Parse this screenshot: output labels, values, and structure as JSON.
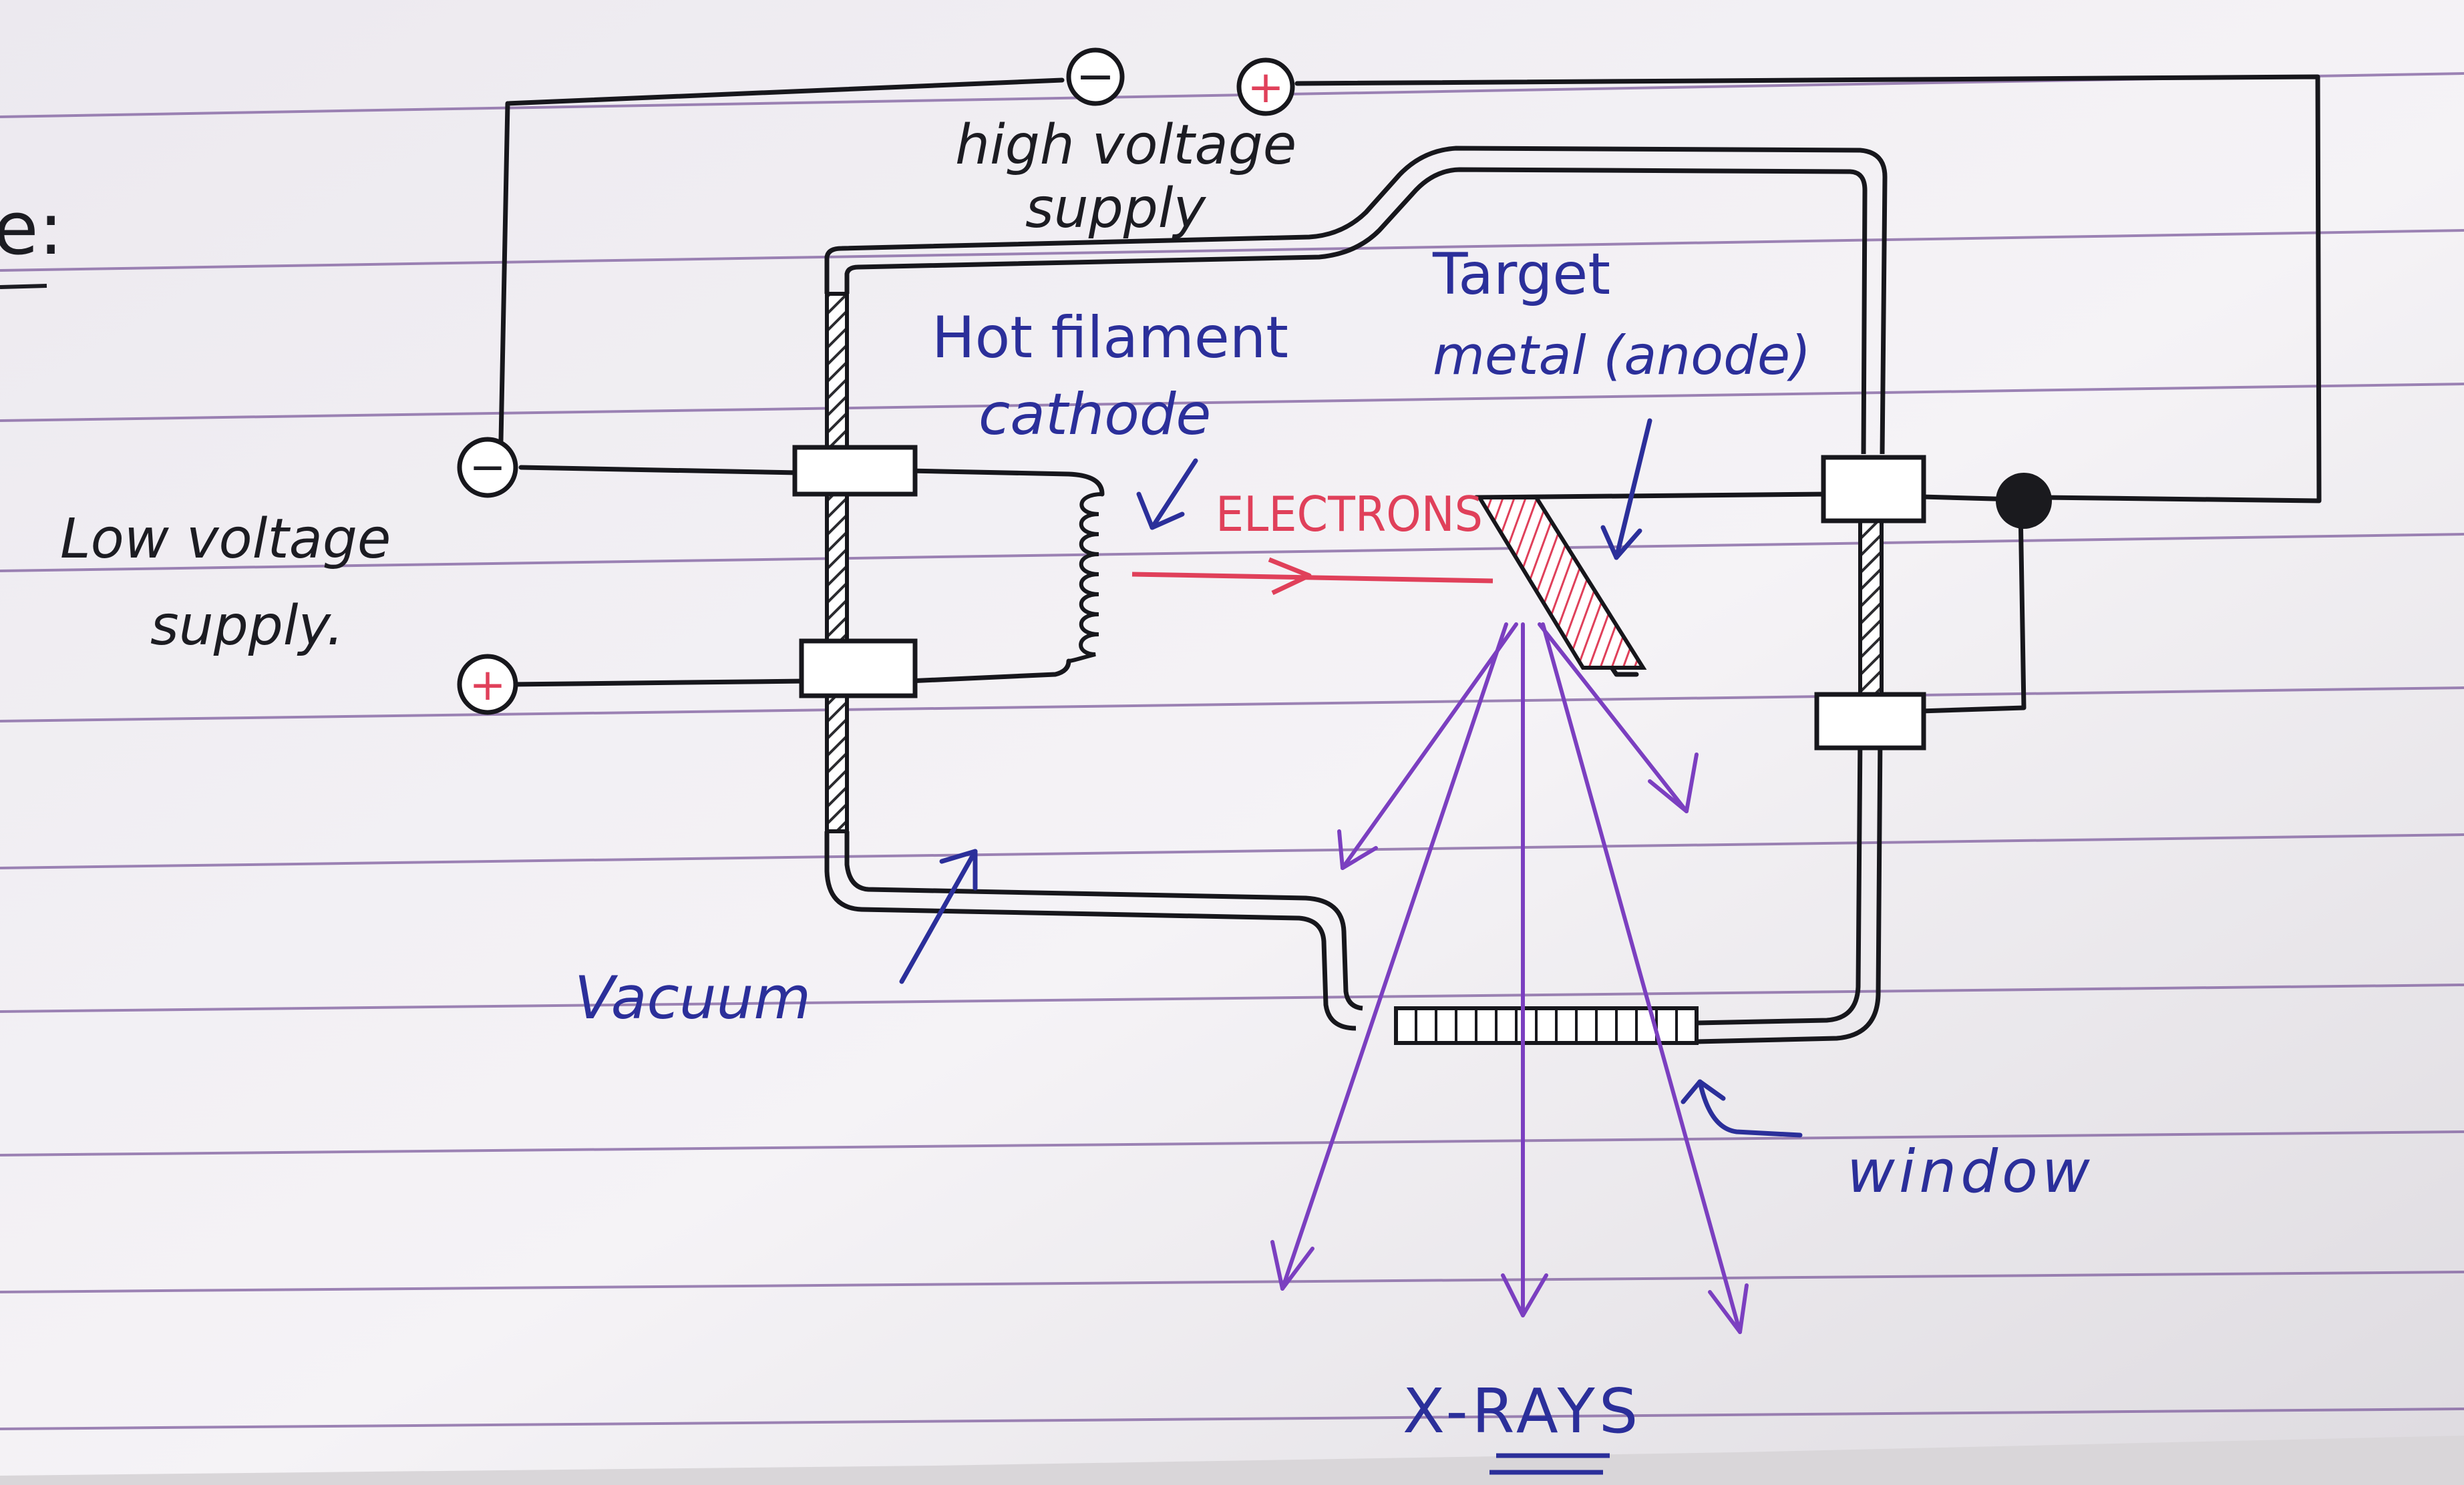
{
  "colors": {
    "paper": "#f3f1f5",
    "ruled_line": "#7e5d9e",
    "pencil_black": "#17171c",
    "ink_blue": "#2b2f9a",
    "ink_red": "#e0405a",
    "ink_purple": "#7b3fc0"
  },
  "labels": {
    "heading_fragment": "e:",
    "high_voltage_supply_line1": "high voltage",
    "high_voltage_supply_line2": "supply",
    "hot_filament_line1": "Hot filament",
    "hot_filament_line2": "cathode",
    "target_line1": "Target",
    "target_line2": "metal (anode)",
    "low_voltage_supply_line1": "Low voltage",
    "low_voltage_supply_line2": "supply.",
    "electrons": "ELECTRONS",
    "vacuum": "Vacuum",
    "window": "window",
    "x_rays": "X-RAYS"
  },
  "terminals": {
    "high_negative": "−",
    "high_positive": "+",
    "low_negative": "−",
    "low_positive": "+"
  }
}
